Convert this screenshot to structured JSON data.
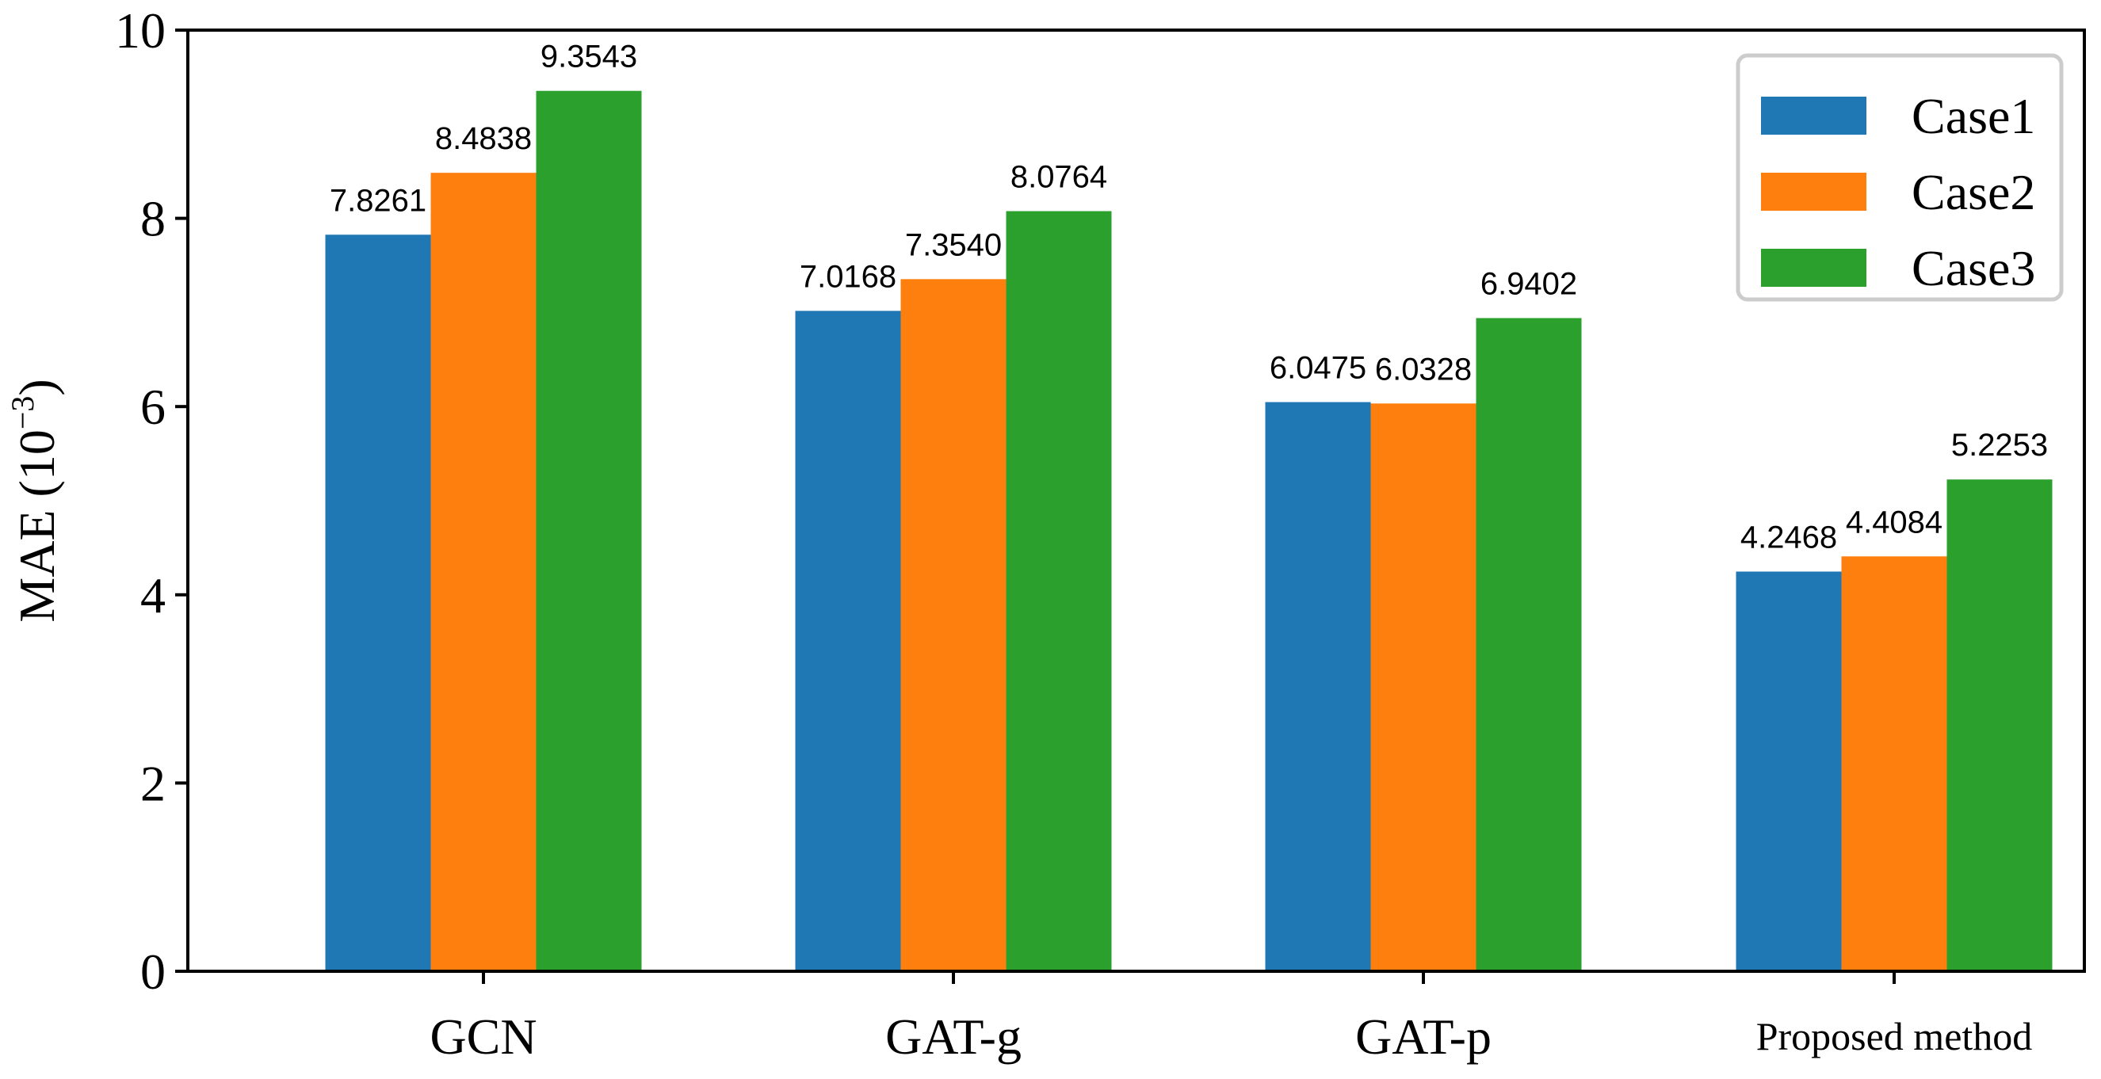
{
  "chart_data": {
    "type": "bar",
    "title": "",
    "xlabel": "",
    "ylabel": "MAE (10",
    "ylabel_exponent": "−3",
    "ylabel_suffix": ")",
    "ylim": [
      0,
      10
    ],
    "yticks": [
      0,
      2,
      4,
      6,
      8,
      10
    ],
    "ytick_labels": [
      "0",
      "2",
      "4",
      "6",
      "8",
      "10"
    ],
    "categories": [
      "GCN",
      "GAT-g",
      "GAT-p",
      "Proposed method"
    ],
    "series": [
      {
        "name": "Case1",
        "color": "#1f77b4",
        "values": [
          7.8261,
          7.0168,
          6.0475,
          4.2468
        ],
        "labels": [
          "7.8261",
          "7.0168",
          "6.0475",
          "4.2468"
        ]
      },
      {
        "name": "Case2",
        "color": "#ff7f0e",
        "values": [
          8.4838,
          7.354,
          6.0328,
          4.4084
        ],
        "labels": [
          "8.4838",
          "7.3540",
          "6.0328",
          "4.4084"
        ]
      },
      {
        "name": "Case3",
        "color": "#2ca02c",
        "values": [
          9.3543,
          8.0764,
          6.9402,
          5.2253
        ],
        "labels": [
          "9.3543",
          "8.0764",
          "6.9402",
          "5.2253"
        ]
      }
    ],
    "legend": {
      "position": "top-right",
      "entries": [
        "Case1",
        "Case2",
        "Case3"
      ]
    },
    "grid": false
  }
}
